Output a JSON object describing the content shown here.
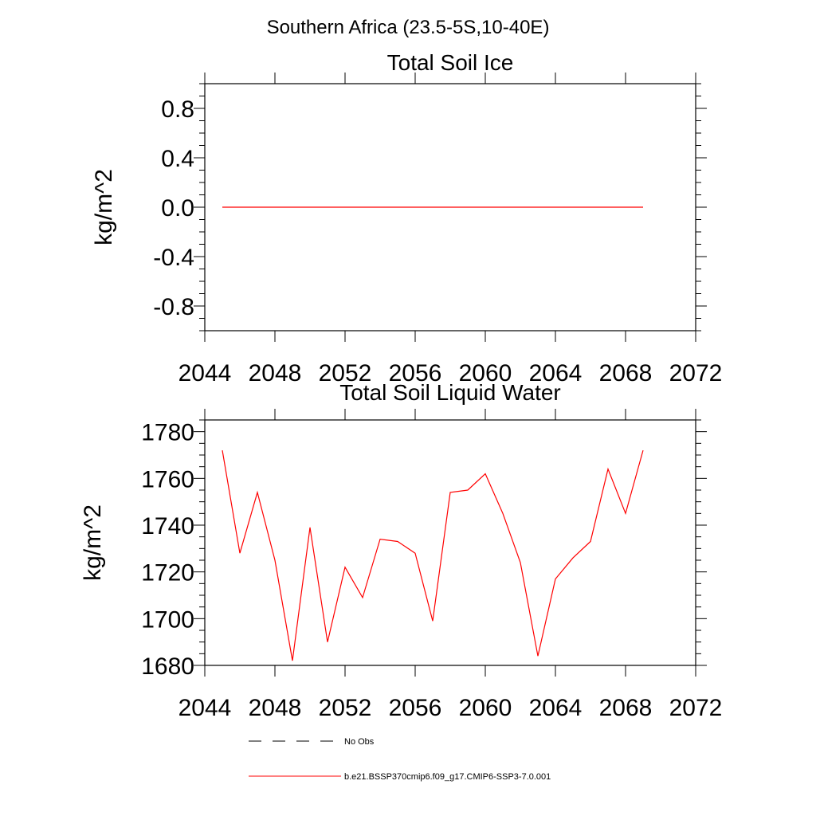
{
  "figure_title": "Southern Africa (23.5-5S,10-40E)",
  "colors": {
    "model": "#ff0000",
    "obs": "#000000",
    "axis": "#000000"
  },
  "legend": {
    "obs_label": "No Obs",
    "model_label": "b.e21.BSSP370cmip6.f09_g17.CMIP6-SSP3-7.0.001"
  },
  "chart_data": [
    {
      "type": "line",
      "title": "Total Soil Ice",
      "xlabel": "",
      "ylabel": "kg/m^2",
      "xlim": [
        2044,
        2072
      ],
      "ylim": [
        -1.0,
        1.0
      ],
      "x_ticks": [
        2044,
        2048,
        2052,
        2056,
        2060,
        2064,
        2068,
        2072
      ],
      "y_ticks": [
        -0.8,
        -0.4,
        0.0,
        0.4,
        0.8
      ],
      "y_tick_labels": [
        "-0.8",
        "-0.4",
        "0.0",
        "0.4",
        "0.8"
      ],
      "grid": false,
      "series": [
        {
          "name": "b.e21.BSSP370cmip6.f09_g17.CMIP6-SSP3-7.0.001",
          "x": [
            2045,
            2046,
            2047,
            2048,
            2049,
            2050,
            2051,
            2052,
            2053,
            2054,
            2055,
            2056,
            2057,
            2058,
            2059,
            2060,
            2061,
            2062,
            2063,
            2064,
            2065,
            2066,
            2067,
            2068,
            2069
          ],
          "y": [
            0,
            0,
            0,
            0,
            0,
            0,
            0,
            0,
            0,
            0,
            0,
            0,
            0,
            0,
            0,
            0,
            0,
            0,
            0,
            0,
            0,
            0,
            0,
            0,
            0
          ]
        }
      ]
    },
    {
      "type": "line",
      "title": "Total Soil Liquid Water",
      "xlabel": "",
      "ylabel": "kg/m^2",
      "xlim": [
        2044,
        2072
      ],
      "ylim": [
        1680,
        1785
      ],
      "x_ticks": [
        2044,
        2048,
        2052,
        2056,
        2060,
        2064,
        2068,
        2072
      ],
      "y_ticks": [
        1680,
        1700,
        1720,
        1740,
        1760,
        1780
      ],
      "y_tick_labels": [
        "1680",
        "1700",
        "1720",
        "1740",
        "1760",
        "1780"
      ],
      "grid": false,
      "series": [
        {
          "name": "b.e21.BSSP370cmip6.f09_g17.CMIP6-SSP3-7.0.001",
          "x": [
            2045,
            2046,
            2047,
            2048,
            2049,
            2050,
            2051,
            2052,
            2053,
            2054,
            2055,
            2056,
            2057,
            2058,
            2059,
            2060,
            2061,
            2062,
            2063,
            2064,
            2065,
            2066,
            2067,
            2068,
            2069
          ],
          "y": [
            1772,
            1728,
            1754,
            1725,
            1682,
            1739,
            1690,
            1722,
            1709,
            1734,
            1733,
            1728,
            1699,
            1754,
            1755,
            1762,
            1745,
            1724,
            1684,
            1717,
            1726,
            1733,
            1764,
            1745,
            1772
          ]
        }
      ]
    }
  ]
}
